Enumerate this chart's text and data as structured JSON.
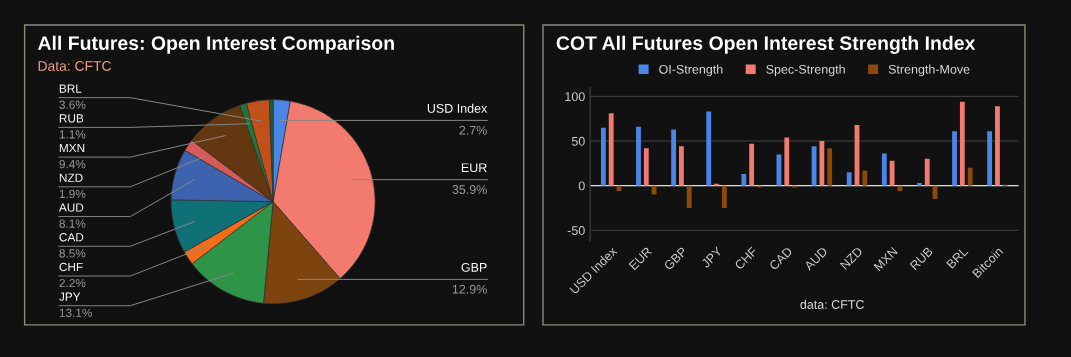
{
  "chart_data": [
    {
      "type": "pie",
      "title": "All Futures: Open Interest Comparison",
      "subtitle": "Data: CFTC",
      "categories": [
        "USD Index",
        "EUR",
        "GBP",
        "JPY",
        "CHF",
        "CAD",
        "AUD",
        "NZD",
        "MXN",
        "RUB",
        "BRL",
        null
      ],
      "values": [
        2.7,
        35.9,
        12.9,
        13.1,
        2.2,
        8.5,
        8.1,
        1.9,
        9.4,
        1.1,
        3.6,
        0.6
      ],
      "value_labels": [
        "2.7%",
        "35.9%",
        "12.9%",
        "13.1%",
        "2.2%",
        "8.5%",
        "8.1%",
        "1.9%",
        "9.4%",
        "1.1%",
        "3.6%",
        null
      ],
      "colors": [
        "#4a86e8",
        "#f27a6e",
        "#7e4410",
        "#2e9447",
        "#f26d1a",
        "#0f7076",
        "#3d62ae",
        "#d65a57",
        "#633810",
        "#25743a",
        "#c1501a",
        "#1b5e30"
      ]
    },
    {
      "type": "bar",
      "title": "COT All Futures Open Interest Strength Index",
      "categories": [
        "USD Index",
        "EUR",
        "GBP",
        "JPY",
        "CHF",
        "CAD",
        "AUD",
        "NZD",
        "MXN",
        "RUB",
        "BRL",
        "Bitcoin"
      ],
      "series": [
        {
          "name": "OI-Strength",
          "color": "#4a86e8",
          "values": [
            65,
            66,
            63,
            83,
            13,
            35,
            44,
            15,
            36,
            3,
            61,
            61
          ]
        },
        {
          "name": "Spec-Strength",
          "color": "#f27a6e",
          "values": [
            81,
            42,
            44,
            2,
            47,
            54,
            50,
            68,
            28,
            30,
            94,
            89
          ]
        },
        {
          "name": "Strength-Move",
          "color": "#8b4a0c",
          "values": [
            -6,
            -10,
            -25,
            -25,
            -2,
            -2,
            42,
            17,
            -6,
            -15,
            20,
            1
          ]
        }
      ],
      "ylim": [
        -62,
        110
      ],
      "yticks": [
        -50,
        0,
        50,
        100
      ],
      "grid": "y",
      "legend": "top",
      "annotations": [
        "data: CFTC"
      ]
    }
  ]
}
